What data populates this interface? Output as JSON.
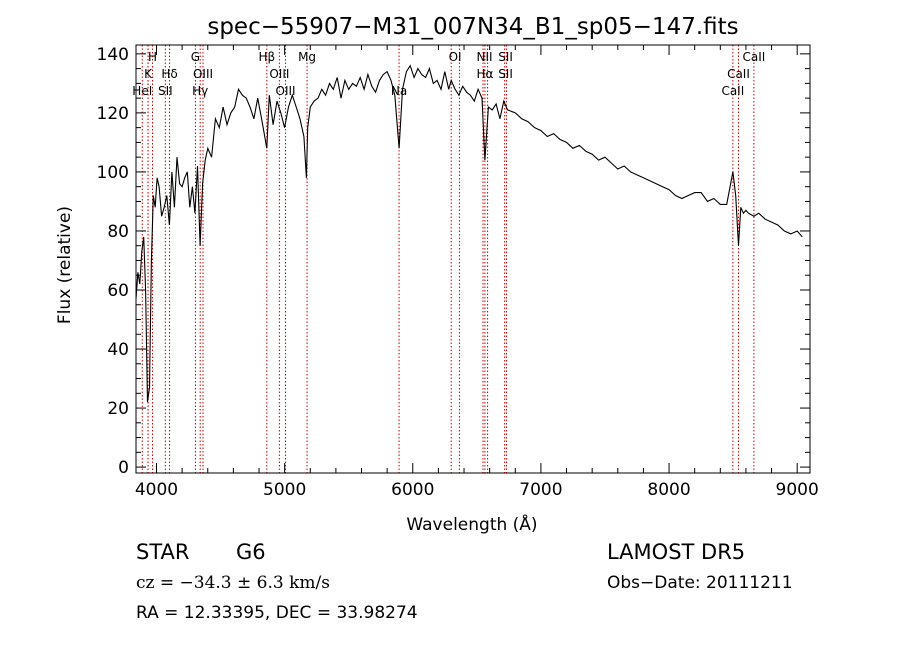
{
  "chart_data": {
    "type": "line",
    "title": "spec−55907−M31_007N34_B1_sp05−147.fits",
    "xlabel": "Wavelength (Å)",
    "ylabel": "Flux (relative)",
    "xlim": [
      3840,
      9100
    ],
    "ylim": [
      -2,
      143
    ],
    "xticks": [
      4000,
      5000,
      6000,
      7000,
      8000,
      9000
    ],
    "yticks": [
      0,
      20,
      40,
      60,
      80,
      100,
      120,
      140
    ],
    "xtick_labels": [
      "4000",
      "5000",
      "6000",
      "7000",
      "8000",
      "9000"
    ],
    "ytick_labels": [
      "0",
      "20",
      "40",
      "60",
      "80",
      "100",
      "120",
      "140"
    ],
    "series": [
      {
        "x": [
          3840,
          3855,
          3870,
          3885,
          3900,
          3915,
          3930,
          3945,
          3960,
          3975,
          3990,
          4005,
          4020,
          4040,
          4060,
          4080,
          4101,
          4120,
          4140,
          4160,
          4180,
          4200,
          4220,
          4240,
          4260,
          4280,
          4300,
          4320,
          4340,
          4360,
          4380,
          4400,
          4430,
          4460,
          4490,
          4520,
          4550,
          4580,
          4610,
          4640,
          4670,
          4700,
          4730,
          4760,
          4790,
          4820,
          4861,
          4880,
          4910,
          4940,
          4970,
          5000,
          5030,
          5060,
          5090,
          5120,
          5150,
          5170,
          5180,
          5200,
          5230,
          5260,
          5290,
          5320,
          5350,
          5380,
          5410,
          5440,
          5470,
          5500,
          5530,
          5560,
          5590,
          5620,
          5650,
          5680,
          5710,
          5740,
          5770,
          5800,
          5830,
          5860,
          5893,
          5920,
          5950,
          5980,
          6010,
          6040,
          6070,
          6100,
          6130,
          6160,
          6190,
          6220,
          6250,
          6280,
          6300,
          6330,
          6360,
          6390,
          6420,
          6450,
          6480,
          6510,
          6540,
          6563,
          6590,
          6620,
          6650,
          6680,
          6710,
          6740,
          6800,
          6850,
          6900,
          6950,
          7000,
          7050,
          7100,
          7150,
          7200,
          7250,
          7300,
          7350,
          7400,
          7450,
          7500,
          7550,
          7600,
          7650,
          7700,
          7750,
          7800,
          7850,
          7900,
          7950,
          8000,
          8050,
          8100,
          8150,
          8200,
          8250,
          8300,
          8350,
          8400,
          8450,
          8498,
          8520,
          8542,
          8560,
          8580,
          8600,
          8620,
          8662,
          8700,
          8750,
          8800,
          8850,
          8900,
          8950,
          9000,
          9040
        ],
        "y": [
          57,
          66,
          62,
          73,
          78,
          60,
          22,
          27,
          70,
          92,
          88,
          98,
          95,
          85,
          88,
          92,
          82,
          100,
          88,
          105,
          96,
          95,
          98,
          100,
          88,
          95,
          86,
          102,
          75,
          96,
          104,
          108,
          105,
          118,
          115,
          122,
          116,
          120,
          122,
          128,
          126,
          125,
          122,
          118,
          125,
          118,
          108,
          126,
          116,
          124,
          120,
          115,
          122,
          126,
          122,
          118,
          112,
          98,
          115,
          122,
          124,
          125,
          128,
          126,
          130,
          128,
          132,
          125,
          131,
          128,
          130,
          129,
          132,
          128,
          133,
          129,
          127,
          131,
          133,
          134,
          131,
          126,
          108,
          128,
          134,
          136,
          132,
          135,
          133,
          132,
          135,
          130,
          131,
          128,
          134,
          128,
          131,
          128,
          126,
          129,
          127,
          126,
          124,
          128,
          125,
          104,
          122,
          121,
          123,
          118,
          124,
          121,
          120,
          118,
          117,
          115,
          114,
          112,
          113,
          111,
          110,
          108,
          109,
          107,
          106,
          104,
          105,
          103,
          101,
          102,
          100,
          99,
          98,
          97,
          96,
          95,
          94,
          92,
          91,
          92,
          93,
          93,
          90,
          91,
          89,
          89,
          100,
          92,
          75,
          88,
          86,
          87,
          86,
          85,
          86,
          84,
          83,
          82,
          80,
          79,
          80,
          78
        ]
      }
    ],
    "lines": [
      {
        "label": "CaII",
        "x": 3934
      },
      {
        "label": "K",
        "x": 3934
      },
      {
        "label": "H",
        "x": 3969
      },
      {
        "label": "HeI",
        "x": 3889
      },
      {
        "label": "SII",
        "x": 4069
      },
      {
        "label": "Hδ",
        "x": 4102
      },
      {
        "label": "G",
        "x": 4304
      },
      {
        "label": "OIII",
        "x": 4363
      },
      {
        "label": "Hγ",
        "x": 4341
      },
      {
        "label": "Hβ",
        "x": 4861
      },
      {
        "label": "OIII",
        "x": 4959
      },
      {
        "label": "OIII",
        "x": 5007
      },
      {
        "label": "Mg",
        "x": 5175
      },
      {
        "label": "Na",
        "x": 5893
      },
      {
        "label": "OI",
        "x": 6300
      },
      {
        "label": "OI",
        "x": 6364
      },
      {
        "label": "NII",
        "x": 6548
      },
      {
        "label": "Hα",
        "x": 6563
      },
      {
        "label": "NII",
        "x": 6584
      },
      {
        "label": "SII",
        "x": 6717
      },
      {
        "label": "SII",
        "x": 6731
      },
      {
        "label": "CaII",
        "x": 8498
      },
      {
        "label": "CaII",
        "x": 8542
      },
      {
        "label": "CaII",
        "x": 8662
      }
    ],
    "line_labels": [
      {
        "text": "H",
        "x": 3969,
        "row": 1
      },
      {
        "text": "K",
        "x": 3934,
        "row": 2
      },
      {
        "text": "HeI",
        "x": 3889,
        "row": 3
      },
      {
        "text": "Hδ",
        "x": 4102,
        "row": 2
      },
      {
        "text": "SII",
        "x": 4069,
        "row": 3
      },
      {
        "text": "G",
        "x": 4304,
        "row": 1
      },
      {
        "text": "OIII",
        "x": 4363,
        "row": 2
      },
      {
        "text": "Hγ",
        "x": 4341,
        "row": 3
      },
      {
        "text": "Hβ",
        "x": 4861,
        "row": 1
      },
      {
        "text": "OIII",
        "x": 4959,
        "row": 2
      },
      {
        "text": "OIII",
        "x": 5007,
        "row": 3
      },
      {
        "text": "Mg",
        "x": 5175,
        "row": 1
      },
      {
        "text": "Na",
        "x": 5893,
        "row": 3
      },
      {
        "text": "OI",
        "x": 6330,
        "row": 1
      },
      {
        "text": "NII",
        "x": 6560,
        "row": 1
      },
      {
        "text": "SII",
        "x": 6724,
        "row": 1
      },
      {
        "text": "Hα",
        "x": 6563,
        "row": 2
      },
      {
        "text": "SII",
        "x": 6724,
        "row": 2
      },
      {
        "text": "CaII",
        "x": 8662,
        "row": 1
      },
      {
        "text": "CaII",
        "x": 8542,
        "row": 2
      },
      {
        "text": "CaII",
        "x": 8498,
        "row": 3
      }
    ],
    "line_color": "#cc0000",
    "grid": false
  },
  "info": {
    "object_class": "STAR",
    "subclass": "G6",
    "survey": "LAMOST DR5",
    "cz": "cz = −34.3 ± 6.3 km/s",
    "obs_date": "Obs−Date: 20111211",
    "radec": "RA =  12.33395, DEC =  33.98274"
  }
}
